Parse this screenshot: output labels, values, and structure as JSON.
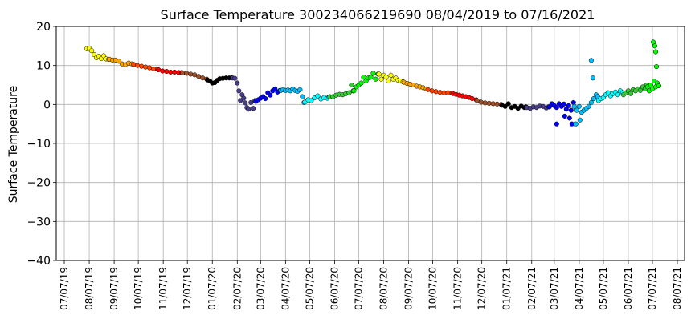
{
  "chart_data": {
    "type": "scatter",
    "title": "Surface Temperature 300234066219690  08/04/2019 to 07/16/2021",
    "ylabel": "Surface Temperature",
    "xlabel": "",
    "ylim": [
      -40,
      20
    ],
    "yticks": [
      20,
      10,
      0,
      -10,
      -20,
      -30,
      -40
    ],
    "xlim": [
      "2019-06-27",
      "2021-08-16"
    ],
    "xtick_labels": [
      "07/07/19",
      "08/07/19",
      "09/07/19",
      "10/07/19",
      "11/07/19",
      "12/07/19",
      "01/07/20",
      "02/07/20",
      "03/07/20",
      "04/07/20",
      "05/07/20",
      "06/07/20",
      "07/07/20",
      "08/07/20",
      "09/07/20",
      "10/07/20",
      "11/07/20",
      "12/07/20",
      "01/07/21",
      "02/07/21",
      "03/07/21",
      "04/07/21",
      "05/07/21",
      "06/07/21",
      "07/07/21",
      "08/07/21"
    ],
    "xtick_dates": [
      "2019-07-07",
      "2019-08-07",
      "2019-09-07",
      "2019-10-07",
      "2019-11-07",
      "2019-12-07",
      "2020-01-07",
      "2020-02-07",
      "2020-03-07",
      "2020-04-07",
      "2020-05-07",
      "2020-06-07",
      "2020-07-07",
      "2020-08-07",
      "2020-09-07",
      "2020-10-07",
      "2020-11-07",
      "2020-12-07",
      "2021-01-07",
      "2021-02-07",
      "2021-03-07",
      "2021-04-07",
      "2021-05-07",
      "2021-06-07",
      "2021-07-07",
      "2021-08-07"
    ],
    "grid": true,
    "legend": "none",
    "month_colors": [
      "#ffff00",
      "#ffa500",
      "#ff4500",
      "#ff0000",
      "#a0522d",
      "#000000",
      "#483d8b",
      "#0000ff",
      "#00bfff",
      "#00ffff",
      "#32cd32",
      "#00ff00"
    ],
    "series": [
      {
        "color": "#ffff00",
        "x": [
          "2019-08-04",
          "2019-08-07",
          "2019-08-10",
          "2019-08-13",
          "2019-08-16",
          "2019-08-19",
          "2019-08-22",
          "2019-08-25",
          "2019-08-28",
          "2019-08-31"
        ],
        "y": [
          14.3,
          14.4,
          13.8,
          12.8,
          12.0,
          12.4,
          11.8,
          12.5,
          11.7,
          11.6
        ]
      },
      {
        "color": "#ffa500",
        "x": [
          "2019-09-01",
          "2019-09-05",
          "2019-09-09",
          "2019-09-13",
          "2019-09-17",
          "2019-09-21",
          "2019-09-25",
          "2019-09-29"
        ],
        "y": [
          11.6,
          11.4,
          11.4,
          11.1,
          10.4,
          10.2,
          10.6,
          10.4
        ]
      },
      {
        "color": "#ff4500",
        "x": [
          "2019-10-01",
          "2019-10-06",
          "2019-10-11",
          "2019-10-16",
          "2019-10-21",
          "2019-10-26",
          "2019-10-31"
        ],
        "y": [
          10.3,
          10.0,
          9.8,
          9.6,
          9.4,
          9.1,
          9.0
        ]
      },
      {
        "color": "#ff0000",
        "x": [
          "2019-11-01",
          "2019-11-06",
          "2019-11-11",
          "2019-11-16",
          "2019-11-21",
          "2019-11-26",
          "2019-11-30"
        ],
        "y": [
          8.9,
          8.6,
          8.5,
          8.3,
          8.3,
          8.2,
          8.2
        ]
      },
      {
        "color": "#a0522d",
        "x": [
          "2019-12-01",
          "2019-12-06",
          "2019-12-11",
          "2019-12-16",
          "2019-12-21",
          "2019-12-26",
          "2019-12-31"
        ],
        "y": [
          8.1,
          8.0,
          7.8,
          7.6,
          7.2,
          6.8,
          6.5
        ]
      },
      {
        "color": "#000000",
        "x": [
          "2020-01-01",
          "2020-01-04",
          "2020-01-07",
          "2020-01-10",
          "2020-01-13",
          "2020-01-16",
          "2020-01-20",
          "2020-01-24",
          "2020-01-28",
          "2020-01-31"
        ],
        "y": [
          6.3,
          6.0,
          5.5,
          5.6,
          6.2,
          6.6,
          6.7,
          6.8,
          6.8,
          6.9
        ]
      },
      {
        "color": "#483d8b",
        "x": [
          "2020-02-01",
          "2020-02-04",
          "2020-02-07",
          "2020-02-09",
          "2020-02-11",
          "2020-02-13",
          "2020-02-15",
          "2020-02-17",
          "2020-02-19",
          "2020-02-21",
          "2020-02-24",
          "2020-02-27",
          "2020-02-29"
        ],
        "y": [
          6.8,
          6.7,
          5.5,
          3.5,
          1.0,
          2.5,
          1.6,
          0.4,
          -0.8,
          -1.2,
          0.5,
          -1.0,
          1.0
        ]
      },
      {
        "color": "#0000ff",
        "x": [
          "2020-03-01",
          "2020-03-04",
          "2020-03-07",
          "2020-03-10",
          "2020-03-13",
          "2020-03-16",
          "2020-03-19",
          "2020-03-22",
          "2020-03-25",
          "2020-03-28",
          "2020-03-31"
        ],
        "y": [
          0.8,
          1.2,
          1.6,
          2.0,
          1.5,
          3.0,
          2.4,
          3.5,
          4.0,
          3.2,
          3.6
        ]
      },
      {
        "color": "#00bfff",
        "x": [
          "2020-04-01",
          "2020-04-04",
          "2020-04-07",
          "2020-04-10",
          "2020-04-13",
          "2020-04-16",
          "2020-04-19",
          "2020-04-22",
          "2020-04-25",
          "2020-04-28",
          "2020-04-30"
        ],
        "y": [
          3.6,
          3.8,
          3.6,
          3.7,
          3.5,
          4.0,
          3.6,
          3.4,
          3.8,
          2.0,
          0.5
        ]
      },
      {
        "color": "#00ffff",
        "x": [
          "2020-05-01",
          "2020-05-05",
          "2020-05-09",
          "2020-05-13",
          "2020-05-17",
          "2020-05-21",
          "2020-05-25",
          "2020-05-29",
          "2020-05-31"
        ],
        "y": [
          0.6,
          1.2,
          1.0,
          1.7,
          2.2,
          1.4,
          1.8,
          1.6,
          1.9
        ]
      },
      {
        "color": "#32cd32",
        "x": [
          "2020-06-01",
          "2020-06-05",
          "2020-06-09",
          "2020-06-13",
          "2020-06-17",
          "2020-06-21",
          "2020-06-25",
          "2020-06-28",
          "2020-06-30"
        ],
        "y": [
          2.0,
          2.0,
          2.4,
          2.6,
          2.5,
          2.8,
          3.0,
          5.0,
          3.5
        ]
      },
      {
        "color": "#00ff00",
        "x": [
          "2020-07-01",
          "2020-07-04",
          "2020-07-07",
          "2020-07-10",
          "2020-07-13",
          "2020-07-16",
          "2020-07-19",
          "2020-07-22",
          "2020-07-25",
          "2020-07-28",
          "2020-07-31"
        ],
        "y": [
          3.5,
          4.5,
          5.0,
          5.5,
          7.0,
          6.0,
          6.8,
          7.0,
          8.0,
          6.5,
          7.8
        ]
      },
      {
        "color": "#ffff00",
        "x": [
          "2020-08-01",
          "2020-08-04",
          "2020-08-07",
          "2020-08-10",
          "2020-08-13",
          "2020-08-16",
          "2020-08-19",
          "2020-08-22",
          "2020-08-25",
          "2020-08-28",
          "2020-08-31"
        ],
        "y": [
          7.8,
          6.5,
          7.5,
          7.0,
          6.0,
          7.5,
          6.5,
          6.8,
          6.2,
          6.0,
          5.8
        ]
      },
      {
        "color": "#ffa500",
        "x": [
          "2020-09-01",
          "2020-09-05",
          "2020-09-09",
          "2020-09-13",
          "2020-09-17",
          "2020-09-21",
          "2020-09-25",
          "2020-09-29"
        ],
        "y": [
          5.7,
          5.4,
          5.2,
          5.0,
          4.7,
          4.5,
          4.3,
          4.0
        ]
      },
      {
        "color": "#ff4500",
        "x": [
          "2020-10-01",
          "2020-10-06",
          "2020-10-11",
          "2020-10-16",
          "2020-10-21",
          "2020-10-26",
          "2020-10-31"
        ],
        "y": [
          3.8,
          3.5,
          3.3,
          3.1,
          3.0,
          3.0,
          2.9
        ]
      },
      {
        "color": "#ff0000",
        "x": [
          "2020-11-01",
          "2020-11-05",
          "2020-11-09",
          "2020-11-13",
          "2020-11-17",
          "2020-11-21",
          "2020-11-25",
          "2020-11-30"
        ],
        "y": [
          2.8,
          2.6,
          2.4,
          2.2,
          2.0,
          1.8,
          1.5,
          1.2
        ]
      },
      {
        "color": "#a0522d",
        "x": [
          "2020-12-01",
          "2020-12-06",
          "2020-12-11",
          "2020-12-16",
          "2020-12-21",
          "2020-12-26",
          "2020-12-31"
        ],
        "y": [
          1.0,
          0.6,
          0.4,
          0.3,
          0.2,
          0.1,
          0.0
        ]
      },
      {
        "color": "#000000",
        "x": [
          "2021-01-01",
          "2021-01-05",
          "2021-01-09",
          "2021-01-13",
          "2021-01-17",
          "2021-01-21",
          "2021-01-25",
          "2021-01-29",
          "2021-01-31"
        ],
        "y": [
          -0.2,
          -0.5,
          0.2,
          -0.8,
          -0.5,
          -1.0,
          -0.4,
          -0.8,
          -0.6
        ]
      },
      {
        "color": "#483d8b",
        "x": [
          "2021-02-01",
          "2021-02-05",
          "2021-02-09",
          "2021-02-13",
          "2021-02-17",
          "2021-02-21",
          "2021-02-25",
          "2021-02-28"
        ],
        "y": [
          -0.8,
          -1.0,
          -0.6,
          -0.8,
          -0.4,
          -0.5,
          -0.9,
          -0.6
        ]
      },
      {
        "color": "#0000ff",
        "x": [
          "2021-03-01",
          "2021-03-04",
          "2021-03-07",
          "2021-03-10",
          "2021-03-13",
          "2021-03-16",
          "2021-03-19",
          "2021-03-22",
          "2021-03-25",
          "2021-03-28",
          "2021-03-31",
          "2021-03-10",
          "2021-03-20",
          "2021-03-26",
          "2021-03-29"
        ],
        "y": [
          -0.6,
          0.2,
          -0.3,
          -0.8,
          0.2,
          -0.5,
          0.1,
          -1.2,
          -0.3,
          -1.5,
          0.5,
          -5.0,
          -3.0,
          -3.5,
          -5.0
        ]
      },
      {
        "color": "#00bfff",
        "x": [
          "2021-04-01",
          "2021-04-04",
          "2021-04-07",
          "2021-04-10",
          "2021-04-13",
          "2021-04-16",
          "2021-04-19",
          "2021-04-22",
          "2021-04-25",
          "2021-04-28",
          "2021-04-30",
          "2021-04-03",
          "2021-04-08",
          "2021-04-22",
          "2021-04-24"
        ],
        "y": [
          -0.5,
          -1.5,
          -0.5,
          -2.0,
          -1.5,
          -1.0,
          -0.5,
          0.5,
          1.5,
          2.5,
          2.0,
          -5.0,
          -4.0,
          11.3,
          6.8
        ]
      },
      {
        "color": "#00ffff",
        "x": [
          "2021-05-01",
          "2021-05-04",
          "2021-05-07",
          "2021-05-10",
          "2021-05-13",
          "2021-05-16",
          "2021-05-19",
          "2021-05-22",
          "2021-05-25",
          "2021-05-28",
          "2021-05-31"
        ],
        "y": [
          1.0,
          1.5,
          1.8,
          2.5,
          3.0,
          2.2,
          2.8,
          3.2,
          2.5,
          3.5,
          3.0
        ]
      },
      {
        "color": "#32cd32",
        "x": [
          "2021-06-01",
          "2021-06-04",
          "2021-06-07",
          "2021-06-10",
          "2021-06-13",
          "2021-06-16",
          "2021-06-19",
          "2021-06-22",
          "2021-06-25",
          "2021-06-28",
          "2021-06-30"
        ],
        "y": [
          2.5,
          3.0,
          3.5,
          2.8,
          3.8,
          3.5,
          4.0,
          3.6,
          4.5,
          4.0,
          5.0
        ]
      },
      {
        "color": "#00ff00",
        "x": [
          "2021-07-01",
          "2021-07-03",
          "2021-07-05",
          "2021-07-07",
          "2021-07-09",
          "2021-07-11",
          "2021-07-13",
          "2021-07-15",
          "2021-07-08",
          "2021-07-10",
          "2021-07-11",
          "2021-07-12"
        ],
        "y": [
          4.5,
          3.5,
          5.0,
          4.0,
          6.0,
          4.5,
          5.5,
          4.8,
          16.0,
          15.0,
          13.5,
          9.7
        ]
      }
    ]
  }
}
